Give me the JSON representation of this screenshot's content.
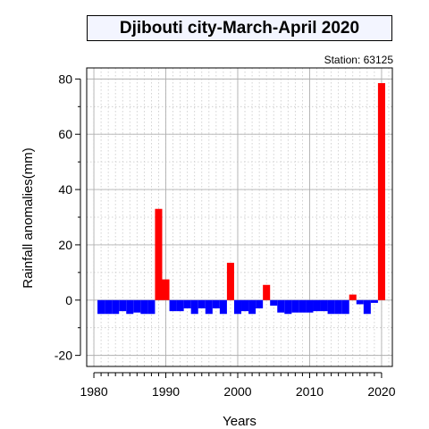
{
  "chart_data": {
    "type": "bar",
    "title": "Djibouti city-March-April 2020",
    "subtitle": "Station: 63125",
    "xlabel": "Years",
    "ylabel": "Rainfall anomalies(mm)",
    "xlim": [
      1979,
      2021.5
    ],
    "ylim": [
      -24,
      84
    ],
    "xticks": [
      1980,
      1990,
      2000,
      2010,
      2020
    ],
    "yticks": [
      -20,
      0,
      20,
      40,
      60,
      80
    ],
    "grid": true,
    "positive_color": "#ff0000",
    "negative_color": "#0000ff",
    "x": [
      1981,
      1982,
      1983,
      1984,
      1985,
      1986,
      1987,
      1988,
      1989,
      1990,
      1991,
      1992,
      1993,
      1994,
      1995,
      1996,
      1997,
      1998,
      1999,
      2000,
      2001,
      2002,
      2003,
      2004,
      2005,
      2006,
      2007,
      2008,
      2009,
      2010,
      2011,
      2012,
      2013,
      2014,
      2015,
      2016,
      2017,
      2018,
      2019,
      2020
    ],
    "values": [
      -5,
      -5,
      -5,
      -4,
      -5,
      -4.5,
      -5,
      -5,
      33,
      7.5,
      -4,
      -4,
      -3,
      -5,
      -3,
      -5,
      -3,
      -5,
      13.5,
      -5,
      -4,
      -5,
      -3,
      5.5,
      -2,
      -4.5,
      -5,
      -4.5,
      -4.5,
      -4.5,
      -4,
      -4,
      -5,
      -5,
      -5,
      2,
      -1.5,
      -5,
      -1,
      78.5
    ]
  }
}
